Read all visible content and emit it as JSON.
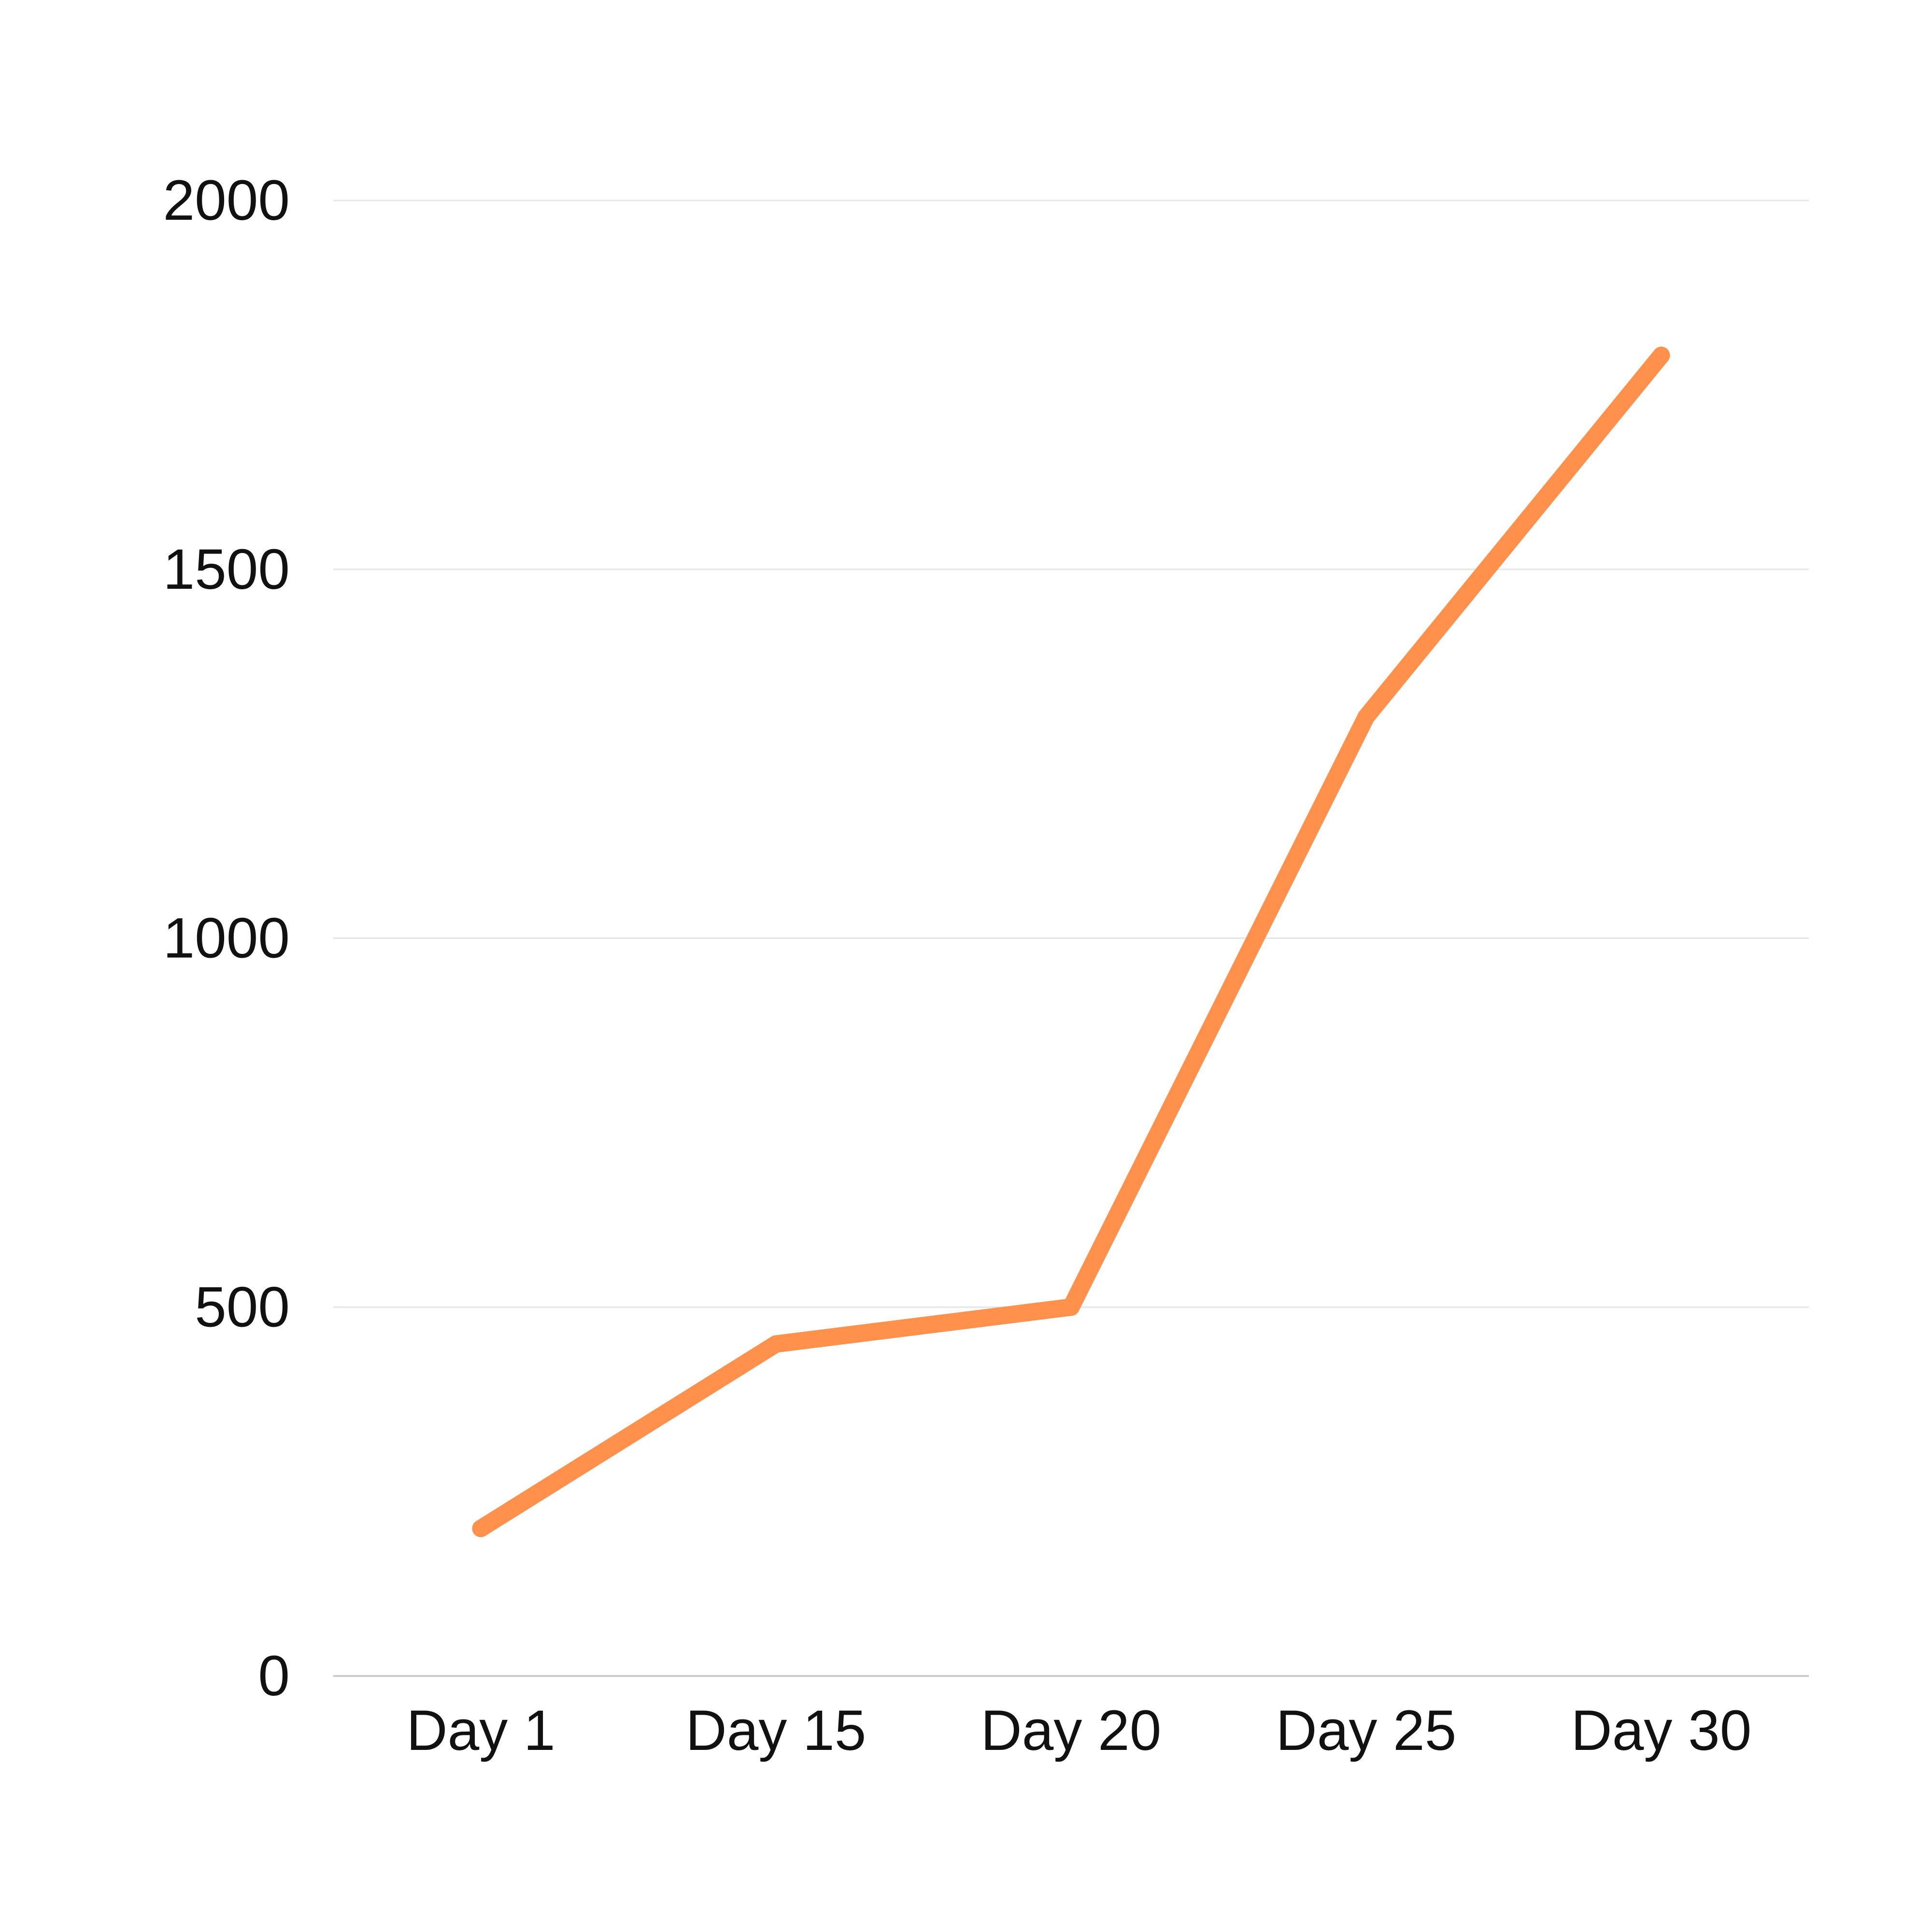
{
  "chart_data": {
    "type": "line",
    "categories": [
      "Day 1",
      "Day 15",
      "Day 20",
      "Day 25",
      "Day 30"
    ],
    "series": [
      {
        "values": [
          200,
          450,
          500,
          1300,
          1790
        ],
        "color": "#ff914d"
      }
    ],
    "yticks": [
      0,
      500,
      1000,
      1500,
      2000
    ],
    "ylim": [
      0,
      2000
    ],
    "grid": true,
    "legend": "none"
  }
}
